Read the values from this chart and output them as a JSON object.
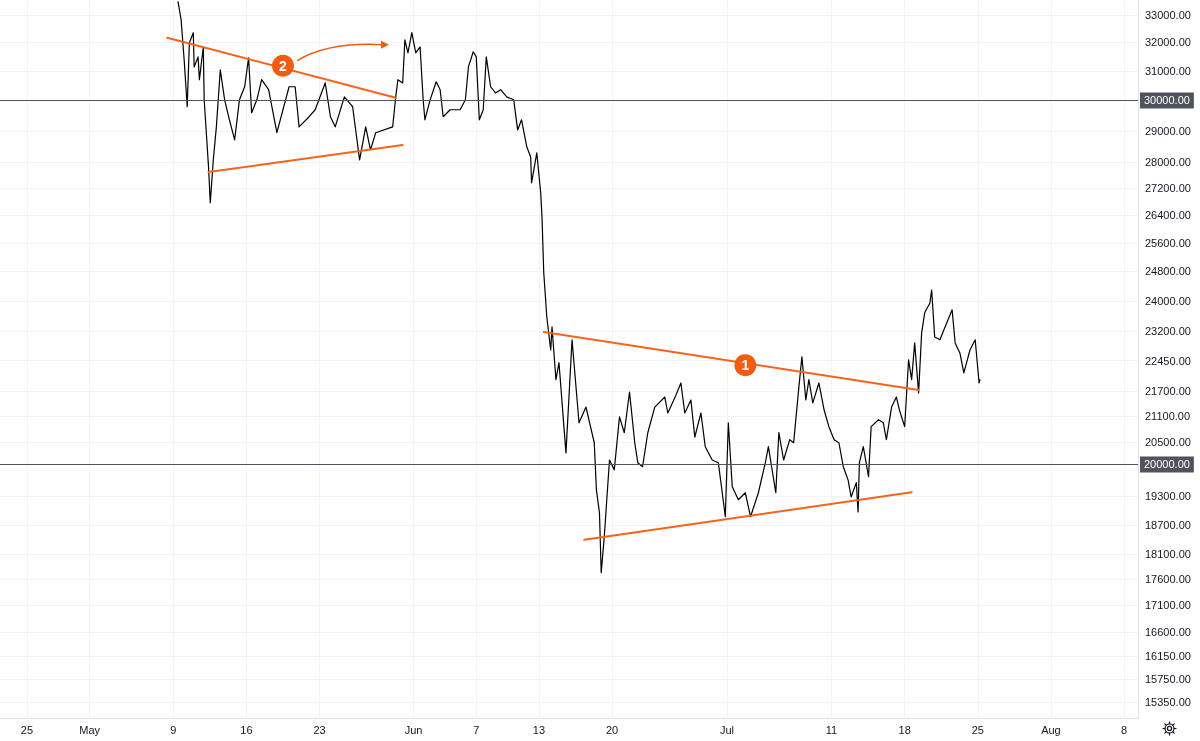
{
  "chart_data": {
    "type": "line",
    "series": [
      {
        "color": "#000000",
        "x": [
          "--05-09T11:00",
          "--05-09T18:00",
          "--05-10T01:00",
          "--05-10T08:00",
          "--05-10T13:00",
          "--05-10T22:00",
          "--05-11T00:00",
          "--05-11T09:00",
          "--05-11T12:00",
          "--05-11T21:00",
          "--05-11T23:00",
          "--05-12T09:00",
          "--05-12T13:00",
          "--05-12T20:00",
          "--05-13T03:00",
          "--05-13T12:00",
          "--05-13T22:00",
          "--05-14T09:00",
          "--05-14T21:00",
          "--05-15T08:00",
          "--05-15T20:00",
          "--05-16T05:00",
          "--05-16T12:00",
          "--05-17T00:00",
          "--05-17T11:00",
          "--05-18T03:00",
          "--05-18T22:00",
          "--05-20T02:00",
          "--05-20T16:00",
          "--05-21T01:00",
          "--05-22T00:00",
          "--05-22T14:00",
          "--05-23T13:00",
          "--05-24T01:00",
          "--05-24T12:00",
          "--05-25T09:00",
          "--05-26T04:00",
          "--05-26T20:00",
          "--05-27T10:00",
          "--05-27T21:00",
          "--05-28T09:00",
          "--05-30T00:00",
          "--05-30T07:00",
          "--05-30T12:00",
          "--05-30T23:00",
          "--05-31T04:00",
          "--05-31T11:00",
          "--05-31T20:00",
          "--06-01T05:00",
          "--06-01T15:00",
          "--06-01T22:00",
          "--06-02T02:00",
          "--06-02T14:00",
          "--06-03T04:00",
          "--06-03T13:00",
          "--06-03T20:00",
          "--06-04T12:00",
          "--06-05T11:00",
          "--06-05T23:00",
          "--06-06T06:00",
          "--06-06T17:00",
          "--06-07T00:00",
          "--06-07T07:00",
          "--06-07T16:00",
          "--06-07T23:00",
          "--06-08T09:00",
          "--06-08T20:00",
          "--06-09T08:00",
          "--06-09T22:00",
          "--06-10T14:00",
          "--06-10T23:00",
          "--06-11T08:00",
          "--06-11T20:00",
          "--06-12T05:00",
          "--06-12T07:00",
          "--06-12T19:00",
          "--06-13T04:00",
          "--06-13T07:00",
          "--06-13T11:00",
          "--06-13T18:00",
          "--06-14T03:00",
          "--06-14T06:00",
          "--06-14T15:00",
          "--06-14T22:00",
          "--06-15T14:00",
          "--06-16T04:00",
          "--06-16T20:00",
          "--06-17T12:00",
          "--06-18T07:00",
          "--06-18T12:00",
          "--06-18T19:00",
          "--06-18T23:00",
          "--06-19T06:00",
          "--06-19T18:00",
          "--06-20T05:00",
          "--06-20T17:00",
          "--06-21T04:00",
          "--06-21T16:00",
          "--06-22T04:00",
          "--06-22T11:00",
          "--06-22T22:00",
          "--06-23T10:00",
          "--06-24T02:00",
          "--06-25T01:00",
          "--06-25T08:00",
          "--06-26T00:00",
          "--06-26T14:00",
          "--06-26T23:00",
          "--06-27T13:00",
          "--06-27T22:00",
          "--06-28T12:00",
          "--06-28T22:00",
          "--06-29T14:00",
          "--06-30T04:00",
          "--06-30T13:00",
          "--06-30T20:00",
          "--07-01T03:00",
          "--07-01T12:00",
          "--07-02T02:00",
          "--07-02T18:00",
          "--07-03T06:00",
          "--07-04T00:00",
          "--07-04T16:00",
          "--07-04T23:00",
          "--07-05T16:00",
          "--07-05T23:00",
          "--07-06T10:00",
          "--07-07T00:00",
          "--07-07T09:00",
          "--07-07T21:00",
          "--07-08T04:00",
          "--07-08T13:00",
          "--07-08T20:00",
          "--07-09T05:00",
          "--07-09T19:00",
          "--07-10T07:00",
          "--07-10T18:00",
          "--07-11T06:00",
          "--07-11T17:00",
          "--07-12T03:00",
          "--07-12T14:00",
          "--07-12T21:00",
          "--07-13T09:00",
          "--07-13T13:00",
          "--07-13T16:00",
          "--07-14T01:00",
          "--07-14T13:00",
          "--07-14T19:00",
          "--07-15T12:00",
          "--07-15T23:00",
          "--07-16T06:00",
          "--07-16T18:00",
          "--07-17T05:00",
          "--07-17T12:00",
          "--07-18T00:00",
          "--07-18T09:00",
          "--07-18T16:00",
          "--07-18T23:00",
          "--07-19T08:00",
          "--07-19T15:00",
          "--07-19T22:00",
          "--07-20T10:00",
          "--07-20T14:00",
          "--07-20T21:00",
          "--07-21T09:00",
          "--07-21T18:00",
          "--07-22T13:00",
          "--07-22T20:00",
          "--07-23T07:00",
          "--07-23T16:00",
          "--07-24T06:00",
          "--07-24T18:00",
          "--07-25T03:00",
          "--07-25T05:00"
        ],
        "values": [
          33480,
          32820,
          31390,
          29790,
          31990,
          32350,
          31140,
          31490,
          30700,
          31840,
          30020,
          27860,
          26770,
          28080,
          29130,
          31040,
          30020,
          29360,
          28710,
          30020,
          30460,
          31460,
          29590,
          30020,
          30700,
          30360,
          28940,
          30460,
          30460,
          29130,
          29460,
          29690,
          30590,
          29460,
          29130,
          30120,
          29790,
          28080,
          29130,
          28390,
          28940,
          29130,
          30120,
          30700,
          30590,
          32090,
          31630,
          32350,
          31630,
          31840,
          30020,
          29360,
          30020,
          30630,
          30360,
          29460,
          29690,
          29690,
          30020,
          31140,
          31670,
          31490,
          29360,
          29690,
          31490,
          30460,
          30250,
          30360,
          30120,
          30020,
          29030,
          29360,
          28490,
          28170,
          27370,
          28300,
          27070,
          26350,
          24760,
          23570,
          22720,
          23310,
          21980,
          22400,
          20260,
          22980,
          20950,
          21320,
          20490,
          19440,
          18950,
          17730,
          18450,
          20100,
          19880,
          21090,
          20720,
          21680,
          20490,
          20040,
          19950,
          20720,
          21320,
          21560,
          21180,
          21540,
          21900,
          21180,
          21490,
          20620,
          21180,
          20400,
          20100,
          20040,
          19380,
          18870,
          20950,
          19510,
          19230,
          19380,
          18870,
          19380,
          20040,
          20400,
          19380,
          20720,
          20100,
          20560,
          20490,
          21800,
          22550,
          21490,
          21980,
          21420,
          21900,
          21250,
          20860,
          20560,
          20490,
          19950,
          19660,
          19290,
          19600,
          18970,
          20040,
          20400,
          19730,
          20860,
          21020,
          20950,
          20560,
          21320,
          21560,
          21250,
          20860,
          22470,
          21980,
          22900,
          21660,
          23150,
          23680,
          23940,
          24290,
          23050,
          22980,
          23230,
          23760,
          22900,
          22640,
          22150,
          22720,
          22980,
          21900,
          21980
        ]
      },
      {
        "color": "#f7631b",
        "x": [
          "--05-08T10:00",
          "--05-30T07:00"
        ],
        "values": [
          32170,
          30090
        ]
      },
      {
        "color": "#f7631b",
        "x": [
          "--05-12T09:00",
          "--05-30T23:00"
        ],
        "values": [
          27700,
          28550
        ]
      },
      {
        "color": "#f7631b",
        "x": [
          "--06-13T11:00",
          "--07-19T08:00"
        ],
        "values": [
          23180,
          21730
        ]
      },
      {
        "color": "#f7631b",
        "x": [
          "--06-17T08:00",
          "--07-18T16:00"
        ],
        "values": [
          18390,
          19390
        ]
      }
    ],
    "xlim": [
      "--04-22T10:00",
      "--08-09T08:00"
    ],
    "xticks": [
      {
        "value": "--04-25",
        "label": "25"
      },
      {
        "value": "--05-01",
        "label": "May"
      },
      {
        "value": "--05-09",
        "label": "9"
      },
      {
        "value": "--05-16",
        "label": "16"
      },
      {
        "value": "--05-23",
        "label": "23"
      },
      {
        "value": "--06-01",
        "label": "Jun"
      },
      {
        "value": "--06-07",
        "label": "7"
      },
      {
        "value": "--06-13",
        "label": "13"
      },
      {
        "value": "--06-20",
        "label": "20"
      },
      {
        "value": "--07-01",
        "label": "Jul"
      },
      {
        "value": "--07-11",
        "label": "11"
      },
      {
        "value": "--07-18",
        "label": "18"
      },
      {
        "value": "--07-25",
        "label": "25"
      },
      {
        "value": "--08-01",
        "label": "Aug"
      },
      {
        "value": "--08-08",
        "label": "8"
      }
    ],
    "ylim": [
      15080,
      33550
    ],
    "yticks": [
      {
        "value": 15350,
        "label": "15350.00"
      },
      {
        "value": 15750,
        "label": "15750.00"
      },
      {
        "value": 16150,
        "label": "16150.00"
      },
      {
        "value": 16600,
        "label": "16600.00"
      },
      {
        "value": 17100,
        "label": "17100.00"
      },
      {
        "value": 17600,
        "label": "17600.00"
      },
      {
        "value": 18100,
        "label": "18100.00"
      },
      {
        "value": 18700,
        "label": "18700.00"
      },
      {
        "value": 19300,
        "label": "19300.00"
      },
      {
        "value": 20500,
        "label": "20500.00"
      },
      {
        "value": 21100,
        "label": "21100.00"
      },
      {
        "value": 21700,
        "label": "21700.00"
      },
      {
        "value": 22450,
        "label": "22450.00"
      },
      {
        "value": 23200,
        "label": "23200.00"
      },
      {
        "value": 24000,
        "label": "24000.00"
      },
      {
        "value": 24800,
        "label": "24800.00"
      },
      {
        "value": 25600,
        "label": "25600.00"
      },
      {
        "value": 26400,
        "label": "26400.00"
      },
      {
        "value": 27200,
        "label": "27200.00"
      },
      {
        "value": 28000,
        "label": "28000.00"
      },
      {
        "value": 29000,
        "label": "29000.00"
      },
      {
        "value": 31000,
        "label": "31000.00"
      },
      {
        "value": 32000,
        "label": "32000.00"
      },
      {
        "value": 33000,
        "label": "33000.00"
      }
    ],
    "log": "y",
    "grid": true,
    "ref_lines": [
      {
        "axis": "y",
        "value": 30000,
        "label": "30000.00",
        "color": "#50535e"
      },
      {
        "axis": "y",
        "value": 20000,
        "label": "20000.00",
        "color": "#50535e"
      }
    ],
    "annotations": [
      {
        "text": "2",
        "x": "--05-19T12:00",
        "y": 31180
      },
      {
        "text": "1",
        "x": "--07-02T18:00",
        "y": 22340
      }
    ]
  }
}
